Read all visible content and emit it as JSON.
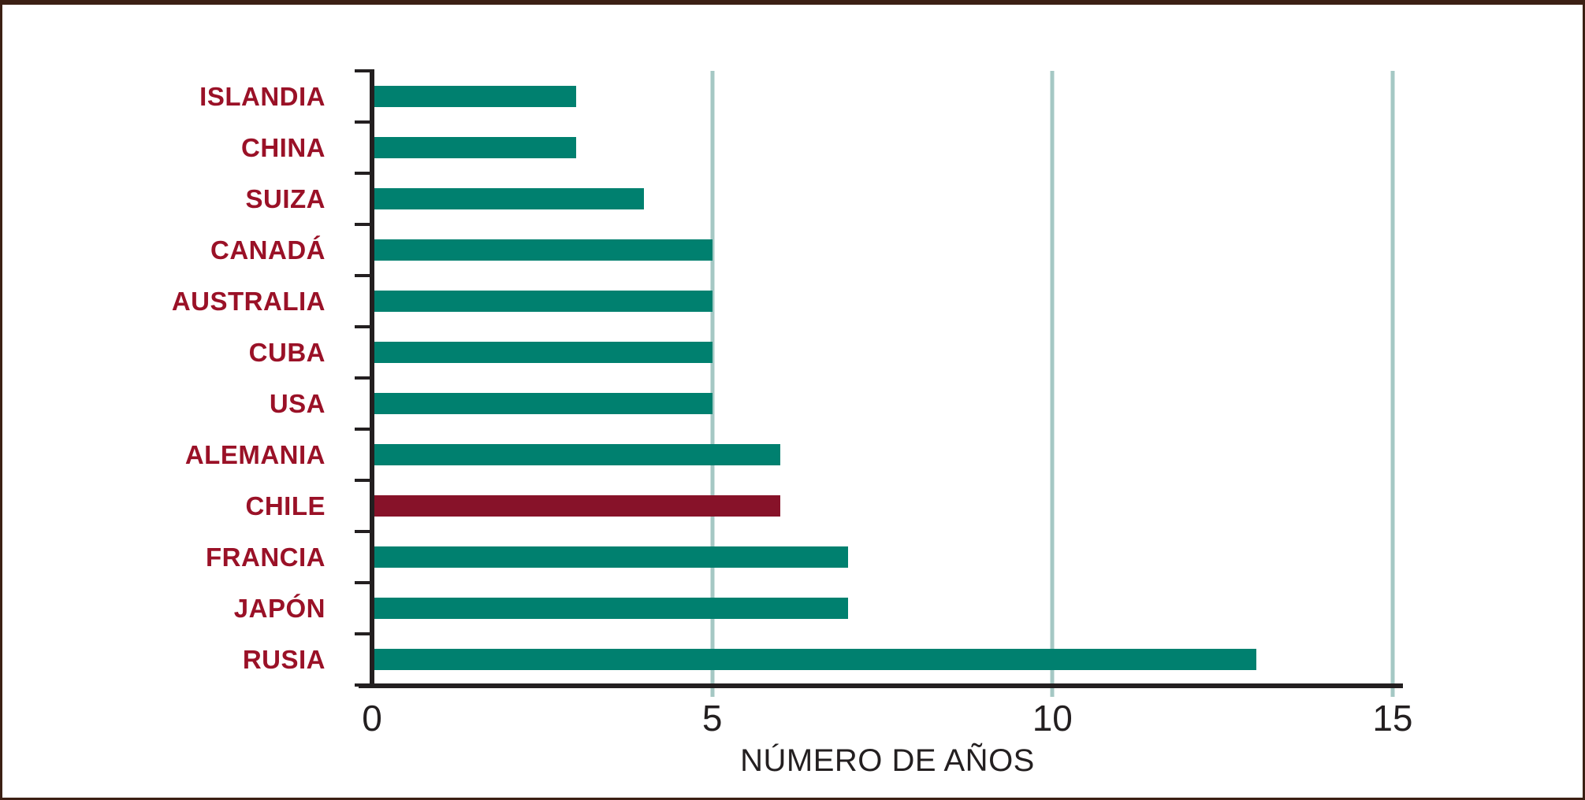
{
  "chart_data": {
    "type": "bar",
    "orientation": "horizontal",
    "title": "",
    "xlabel": "NÚMERO DE AÑOS",
    "ylabel": "",
    "categories": [
      "ISLANDIA",
      "CHINA",
      "SUIZA",
      "CANADÁ",
      "AUSTRALIA",
      "CUBA",
      "USA",
      "ALEMANIA",
      "CHILE",
      "FRANCIA",
      "JAPÓN",
      "RUSIA"
    ],
    "values": [
      3,
      3,
      4,
      5,
      5,
      5,
      5,
      6,
      6,
      7,
      7,
      13
    ],
    "highlighted_category": "CHILE",
    "xlim": [
      0,
      15
    ],
    "x_ticks": [
      0,
      5,
      10,
      15
    ],
    "grid": "vertical gridlines at 5, 10 and 15",
    "legend": "none",
    "colors": {
      "bar": "#00806F",
      "highlight_bar": "#871229",
      "category_label": "#9A1127",
      "axis": "#231F20",
      "tick_label": "#231F20",
      "gridline": "#A5C8C4",
      "frame_border": "#3C2014",
      "background": "#FFFFFF"
    }
  }
}
